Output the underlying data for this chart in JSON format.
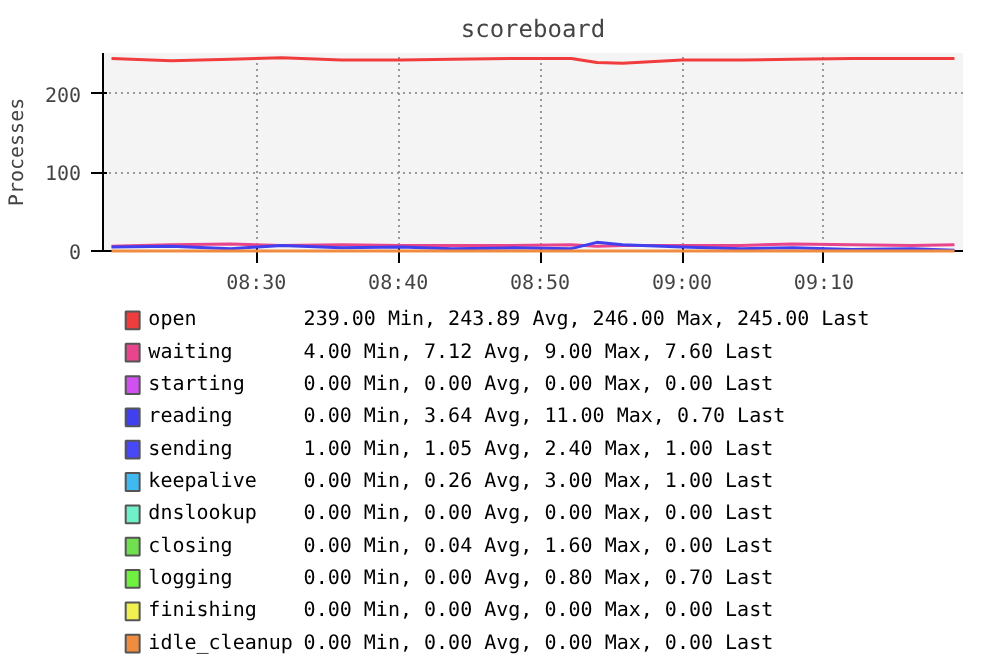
{
  "chart_data": {
    "type": "line",
    "title": "scoreboard",
    "ylabel": "Processes",
    "x": [
      8.33,
      8.4,
      8.47,
      8.53,
      8.6,
      8.67,
      8.73,
      8.8,
      8.87,
      8.9,
      8.93,
      9.0,
      9.07,
      9.13,
      9.2,
      9.27,
      9.32
    ],
    "xlim": [
      8.32,
      9.33
    ],
    "xticks": [
      {
        "value": 8.5,
        "label": "08:30"
      },
      {
        "value": 8.6667,
        "label": "08:40"
      },
      {
        "value": 8.8333,
        "label": "08:50"
      },
      {
        "value": 9.0,
        "label": "09:00"
      },
      {
        "value": 9.1667,
        "label": "09:10"
      }
    ],
    "ylim": [
      0,
      252
    ],
    "yticks": [
      0,
      100,
      200
    ],
    "grid": true,
    "legend": "bottom",
    "series": [
      {
        "name": "open",
        "color": "#f03c3c",
        "values": [
          245,
          242,
          244,
          246,
          243,
          243,
          244,
          245,
          245,
          240,
          239,
          243,
          243,
          244,
          245,
          245,
          245
        ]
      },
      {
        "name": "waiting",
        "color": "#e8458c",
        "values": [
          6,
          8,
          9,
          7,
          8,
          7,
          7,
          7,
          8,
          6,
          7,
          7,
          7,
          9,
          8,
          7,
          8
        ]
      },
      {
        "name": "starting",
        "color": "#d050f0",
        "values": [
          null,
          null,
          null,
          null,
          null,
          null,
          null,
          null,
          null,
          null,
          null,
          null,
          null,
          null,
          null,
          null,
          null
        ]
      },
      {
        "name": "reading",
        "color": "#4040f0",
        "values": [
          5,
          6,
          3,
          7,
          4,
          5,
          3,
          4,
          3,
          11,
          8,
          5,
          3,
          4,
          2,
          3,
          1
        ]
      },
      {
        "name": "sending",
        "color": "#4848f8",
        "values": [
          null,
          null,
          null,
          null,
          null,
          null,
          null,
          null,
          null,
          null,
          null,
          null,
          null,
          null,
          null,
          null,
          null
        ]
      },
      {
        "name": "keepalive",
        "color": "#40b8f0",
        "values": [
          null,
          null,
          null,
          null,
          null,
          null,
          null,
          null,
          null,
          null,
          null,
          null,
          null,
          null,
          null,
          null,
          null
        ]
      },
      {
        "name": "dnslookup",
        "color": "#70f0c8",
        "values": [
          null,
          null,
          null,
          null,
          null,
          null,
          null,
          null,
          null,
          null,
          null,
          null,
          null,
          null,
          null,
          null,
          null
        ]
      },
      {
        "name": "closing",
        "color": "#70e050",
        "values": [
          null,
          null,
          null,
          null,
          null,
          null,
          null,
          null,
          null,
          null,
          null,
          null,
          null,
          null,
          null,
          null,
          null
        ]
      },
      {
        "name": "logging",
        "color": "#70f040",
        "values": [
          null,
          null,
          null,
          null,
          null,
          null,
          null,
          null,
          null,
          null,
          null,
          null,
          null,
          null,
          null,
          null,
          null
        ]
      },
      {
        "name": "finishing",
        "color": "#f0f050",
        "values": [
          null,
          null,
          null,
          null,
          null,
          null,
          null,
          null,
          null,
          null,
          null,
          null,
          null,
          null,
          null,
          null,
          null
        ]
      },
      {
        "name": "idle_cleanup",
        "color": "#f08c40",
        "values": [
          0,
          0,
          0,
          0,
          0,
          0,
          0,
          0,
          0,
          0,
          0,
          0,
          0,
          0,
          0,
          0,
          0
        ]
      }
    ],
    "annotations": [
      "239.00 Min,  243.89 Avg,  246.00 Max,  245.00 Last",
      "  4.00 Min,    7.12 Avg,    9.00 Max,    7.60 Last",
      "  0.00 Min,    0.00 Avg,    0.00 Max,    0.00 Last",
      "  0.00 Min,    3.64 Avg,   11.00 Max,    0.70 Last",
      "  1.00 Min,    1.05 Avg,    2.40 Max,    1.00 Last",
      "  0.00 Min,    0.26 Avg,    3.00 Max,    1.00 Last",
      "  0.00 Min,    0.00 Avg,    0.00 Max,    0.00 Last",
      "  0.00 Min,    0.04 Avg,    1.60 Max,    0.00 Last",
      "  0.00 Min,    0.00 Avg,    0.80 Max,    0.70 Last",
      "  0.00 Min,    0.00 Avg,    0.00 Max,    0.00 Last",
      "  0.00 Min,    0.00 Avg,    0.00 Max,    0.00 Last"
    ]
  }
}
